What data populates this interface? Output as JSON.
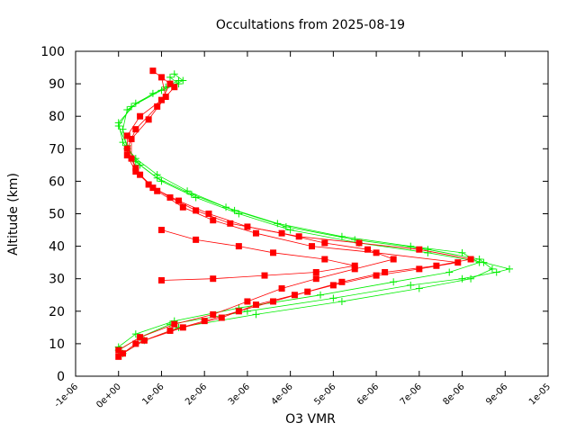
{
  "chart_data": {
    "type": "line",
    "title": "Occultations from 2025-08-19",
    "xlabel": "O3 VMR",
    "ylabel": "Altitude (km)",
    "xlim": [
      -1e-06,
      1e-05
    ],
    "ylim": [
      0,
      100
    ],
    "x_ticks": [
      "-1e-06",
      "0e+00",
      "1e-06",
      "2e-06",
      "3e-06",
      "4e-06",
      "5e-06",
      "6e-06",
      "7e-06",
      "8e-06",
      "9e-06",
      "1e-05"
    ],
    "y_ticks": [
      "0",
      "10",
      "20",
      "30",
      "40",
      "50",
      "60",
      "70",
      "80",
      "90",
      "100"
    ],
    "grid": false,
    "series": [
      {
        "color": "#00ee00",
        "marker": "plus",
        "profiles": [
          {
            "x": [
              0.0,
              5e-07,
              1.2e-06,
              3e-06,
              5e-06,
              6.8e-06,
              8e-06,
              8.8e-06,
              9.1e-06,
              8.5e-06,
              7.2e-06,
              5.6e-06,
              4e-06,
              2.8e-06,
              1.8e-06,
              1e-06,
              5e-07,
              2e-07,
              1e-07,
              2e-07,
              8e-07,
              1.4e-06,
              1.2e-06
            ],
            "y": [
              8,
              12,
              16,
              20,
              24,
              28,
              30,
              32,
              33,
              35,
              38,
              41,
              45,
              50,
              55,
              60,
              65,
              70,
              76,
              82,
              87,
              90,
              92
            ]
          },
          {
            "x": [
              1e-07,
              6e-07,
              1.4e-06,
              3.2e-06,
              5.2e-06,
              7e-06,
              8.2e-06,
              8.7e-06,
              8.4e-06,
              7.2e-06,
              5.5e-06,
              3.9e-06,
              2.7e-06,
              1.7e-06,
              9e-07,
              4e-07,
              2e-07,
              0.0,
              3e-07,
              1e-06,
              1.5e-06,
              1.3e-06
            ],
            "y": [
              7,
              11,
              15,
              19,
              23,
              27,
              30,
              33,
              36,
              39,
              42,
              46,
              51,
              56,
              61,
              66,
              71,
              77,
              83,
              88,
              91,
              93
            ]
          },
          {
            "x": [
              0.0,
              4e-07,
              1.3e-06,
              2.8e-06,
              4.7e-06,
              6.4e-06,
              7.7e-06,
              8.4e-06,
              8e-06,
              6.8e-06,
              5.2e-06,
              3.7e-06,
              2.5e-06,
              1.6e-06,
              9e-07,
              4e-07,
              1e-07,
              0.0,
              4e-07,
              1.1e-06,
              1.4e-06
            ],
            "y": [
              9,
              13,
              17,
              21,
              25,
              29,
              32,
              35,
              38,
              40,
              43,
              47,
              52,
              57,
              62,
              67,
              72,
              78,
              84,
              89,
              91
            ]
          }
        ]
      },
      {
        "color": "#ff0000",
        "marker": "square",
        "profiles": [
          {
            "x": [
              0.0,
              4e-07,
              1.2e-06,
              2e-06,
              2.8e-06,
              3.6e-06,
              4.4e-06,
              5.2e-06,
              6.2e-06,
              7.4e-06,
              8.2e-06,
              7e-06,
              5.6e-06,
              4.2e-06,
              3e-06,
              2.1e-06,
              1.4e-06,
              8e-07,
              4e-07,
              2e-07,
              2e-07,
              5e-07,
              1e-06,
              1.2e-06,
              8e-07
            ],
            "y": [
              6,
              10,
              14,
              17,
              20,
              23,
              26,
              29,
              32,
              34,
              36,
              39,
              41,
              43,
              46,
              50,
              54,
              58,
              63,
              68,
              74,
              80,
              85,
              90,
              94
            ]
          },
          {
            "x": [
              1e-07,
              6e-07,
              1.5e-06,
              2.4e-06,
              3.2e-06,
              4.1e-06,
              5e-06,
              6e-06,
              7e-06,
              7.9e-06,
              6e-06,
              4.5e-06,
              3.2e-06,
              2.2e-06,
              1.5e-06,
              9e-07,
              5e-07,
              3e-07,
              3e-07,
              7e-07,
              1.1e-06,
              1e-06
            ],
            "y": [
              7,
              11,
              15,
              18,
              22,
              25,
              28,
              31,
              33,
              35,
              38,
              40,
              44,
              48,
              52,
              57,
              62,
              67,
              73,
              79,
              86,
              92
            ]
          },
          {
            "x": [
              0.0,
              5e-07,
              1.3e-06,
              2.2e-06,
              3e-06,
              3.8e-06,
              4.6e-06,
              5.5e-06,
              6.4e-06,
              5.8e-06,
              4.8e-06,
              3.8e-06,
              2.6e-06,
              1.8e-06,
              1.2e-06,
              7e-07,
              4e-07,
              2e-07,
              4e-07,
              9e-07,
              1.3e-06
            ],
            "y": [
              8,
              12,
              16,
              19,
              23,
              27,
              30,
              33,
              36,
              39,
              41,
              44,
              47,
              51,
              55,
              59,
              64,
              70,
              76,
              83,
              89
            ]
          },
          {
            "x": [
              1e-06,
              2.2e-06,
              3.4e-06,
              4.6e-06,
              5.5e-06,
              4.8e-06,
              3.6e-06,
              2.8e-06,
              1.8e-06,
              1e-06
            ],
            "y": [
              29.5,
              30,
              31,
              32,
              34,
              36,
              38,
              40,
              42,
              45
            ]
          }
        ]
      }
    ]
  }
}
